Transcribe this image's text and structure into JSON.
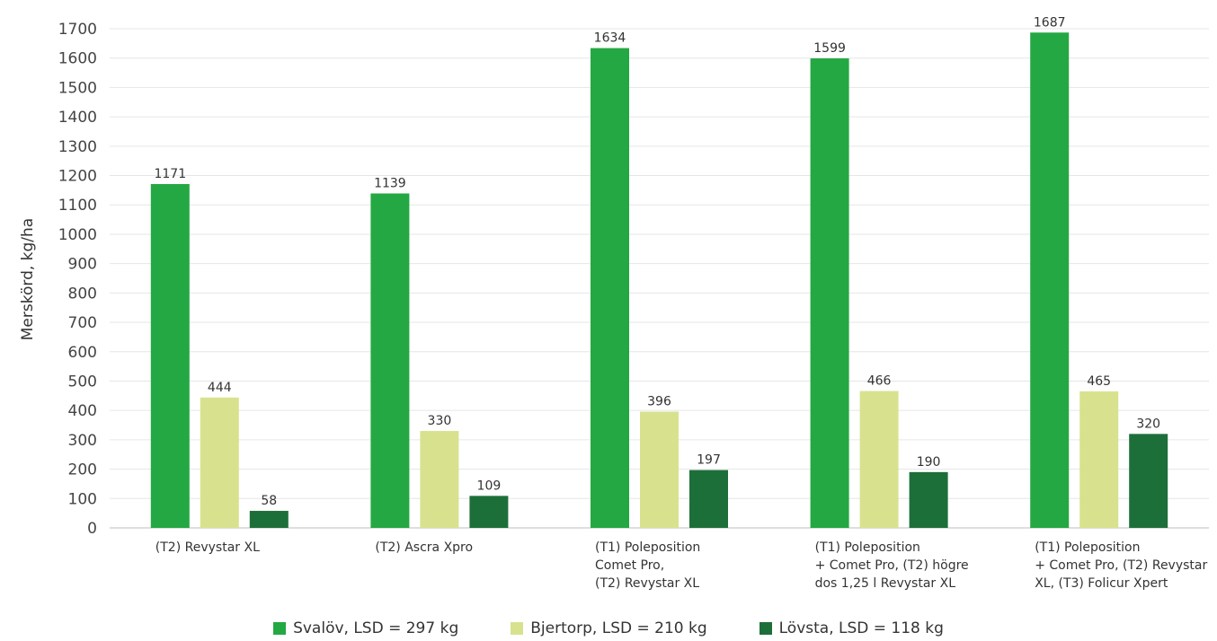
{
  "chart_data": {
    "type": "bar",
    "ylabel": "Merskörd, kg/ha",
    "ylim": [
      0,
      1700
    ],
    "yticks": [
      0,
      100,
      200,
      300,
      400,
      500,
      600,
      700,
      800,
      900,
      1000,
      1100,
      1200,
      1300,
      1400,
      1500,
      1600,
      1700
    ],
    "grid": true,
    "legend_position": "bottom-center",
    "categories": [
      [
        "(T2) Revystar XL"
      ],
      [
        "(T2) Ascra Xpro"
      ],
      [
        "(T1) Poleposition",
        "Comet Pro,",
        "(T2) Revystar XL"
      ],
      [
        "(T1) Poleposition",
        "+ Comet Pro, (T2) högre",
        "dos 1,25 l Revystar XL"
      ],
      [
        "(T1) Poleposition",
        "+ Comet Pro, (T2) Revystar",
        " XL, (T3) Folicur Xpert"
      ]
    ],
    "series": [
      {
        "name": "Svalöv, LSD = 297 kg",
        "color": "#24a843",
        "values": [
          1171,
          1139,
          1634,
          1599,
          1687
        ]
      },
      {
        "name": "Bjertorp, LSD = 210 kg",
        "color": "#d8e28e",
        "values": [
          444,
          330,
          396,
          466,
          465
        ]
      },
      {
        "name": "Lövsta, LSD = 118 kg",
        "color": "#1d6f3a",
        "values": [
          58,
          109,
          197,
          190,
          320
        ]
      }
    ]
  }
}
